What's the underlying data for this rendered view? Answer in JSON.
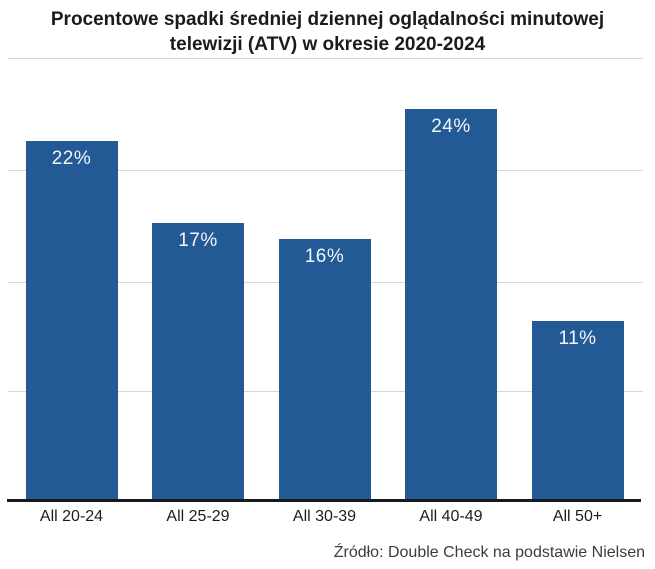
{
  "chart_data": {
    "type": "bar",
    "title": "Procentowe spadki średniej dziennej oglądalności minutowej telewizji (ATV) w okresie 2020-2024",
    "categories": [
      "All 20-24",
      "All 25-29",
      "All 30-39",
      "All 40-49",
      "All 50+"
    ],
    "values": [
      22,
      17,
      16,
      24,
      11
    ],
    "unit": "%",
    "value_labels": [
      "22%",
      "17%",
      "16%",
      "24%",
      "11%"
    ],
    "source": "Źródło: Double Check na podstawie Nielsen",
    "xlabel": "",
    "ylabel": "",
    "ylim": [
      0,
      27
    ],
    "grid": true,
    "legend": false,
    "colors": {
      "bar": "#235a96",
      "bar_label": "#f2f6fa",
      "gridline": "#d7d7d7",
      "axis_line": "#16191d",
      "title_text": "#1b1b1b",
      "background": "#ffffff"
    }
  }
}
